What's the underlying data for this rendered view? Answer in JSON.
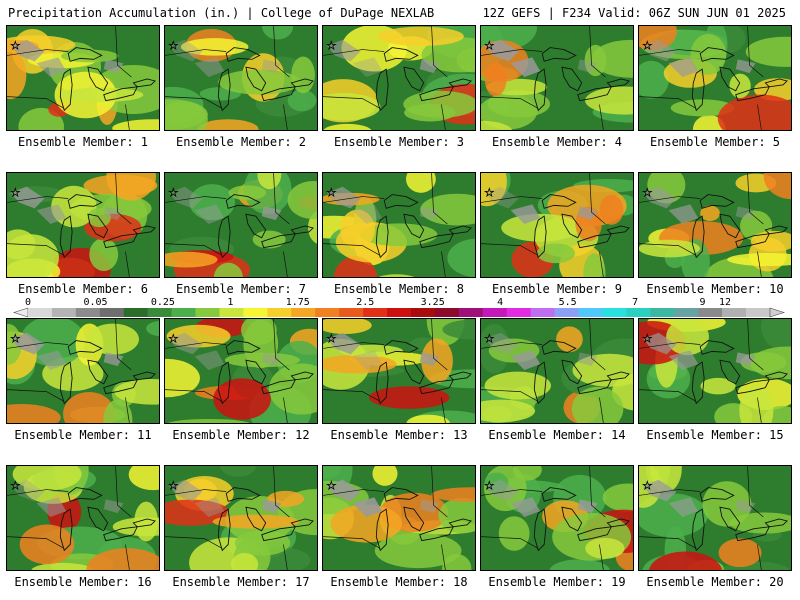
{
  "header": {
    "title_left": "Precipitation Accumulation (in.) | College of DuPage NEXLAB",
    "title_right": "12Z GEFS | F234 Valid: 06Z SUN JUN 01 2025"
  },
  "panels": [
    {
      "label": "Ensemble Member: 1"
    },
    {
      "label": "Ensemble Member: 2"
    },
    {
      "label": "Ensemble Member: 3"
    },
    {
      "label": "Ensemble Member: 4"
    },
    {
      "label": "Ensemble Member: 5"
    },
    {
      "label": "Ensemble Member: 6"
    },
    {
      "label": "Ensemble Member: 7"
    },
    {
      "label": "Ensemble Member: 8"
    },
    {
      "label": "Ensemble Member: 9"
    },
    {
      "label": "Ensemble Member: 10"
    },
    {
      "label": "Ensemble Member: 11"
    },
    {
      "label": "Ensemble Member: 12"
    },
    {
      "label": "Ensemble Member: 13"
    },
    {
      "label": "Ensemble Member: 14"
    },
    {
      "label": "Ensemble Member: 15"
    },
    {
      "label": "Ensemble Member: 16"
    },
    {
      "label": "Ensemble Member: 17"
    },
    {
      "label": "Ensemble Member: 18"
    },
    {
      "label": "Ensemble Member: 19"
    },
    {
      "label": "Ensemble Member: 20"
    }
  ],
  "colorbar": {
    "tick_labels": [
      "0",
      "0.05",
      "0.25",
      "1",
      "1.75",
      "2.5",
      "3.25",
      "4",
      "5.5",
      "7",
      "9",
      "12"
    ],
    "colors": [
      "#d8d8d8",
      "#b4b4b4",
      "#8c8c8c",
      "#6e6e6e",
      "#2a6e2a",
      "#3a8a3a",
      "#4caf4c",
      "#86c93c",
      "#c8e63c",
      "#f5f532",
      "#f7cf2a",
      "#f5a623",
      "#f08020",
      "#ea5a1c",
      "#e03018",
      "#cc1010",
      "#a80c0c",
      "#8c0a2a",
      "#a0107a",
      "#c418b8",
      "#e22ae2",
      "#c06ef0",
      "#8ca0f6",
      "#50c8f8",
      "#28e0e0",
      "#2ad0c0",
      "#3cb8a0",
      "#66a4a4",
      "#8a8a8a",
      "#b0b0b0",
      "#c8c8c8"
    ]
  }
}
